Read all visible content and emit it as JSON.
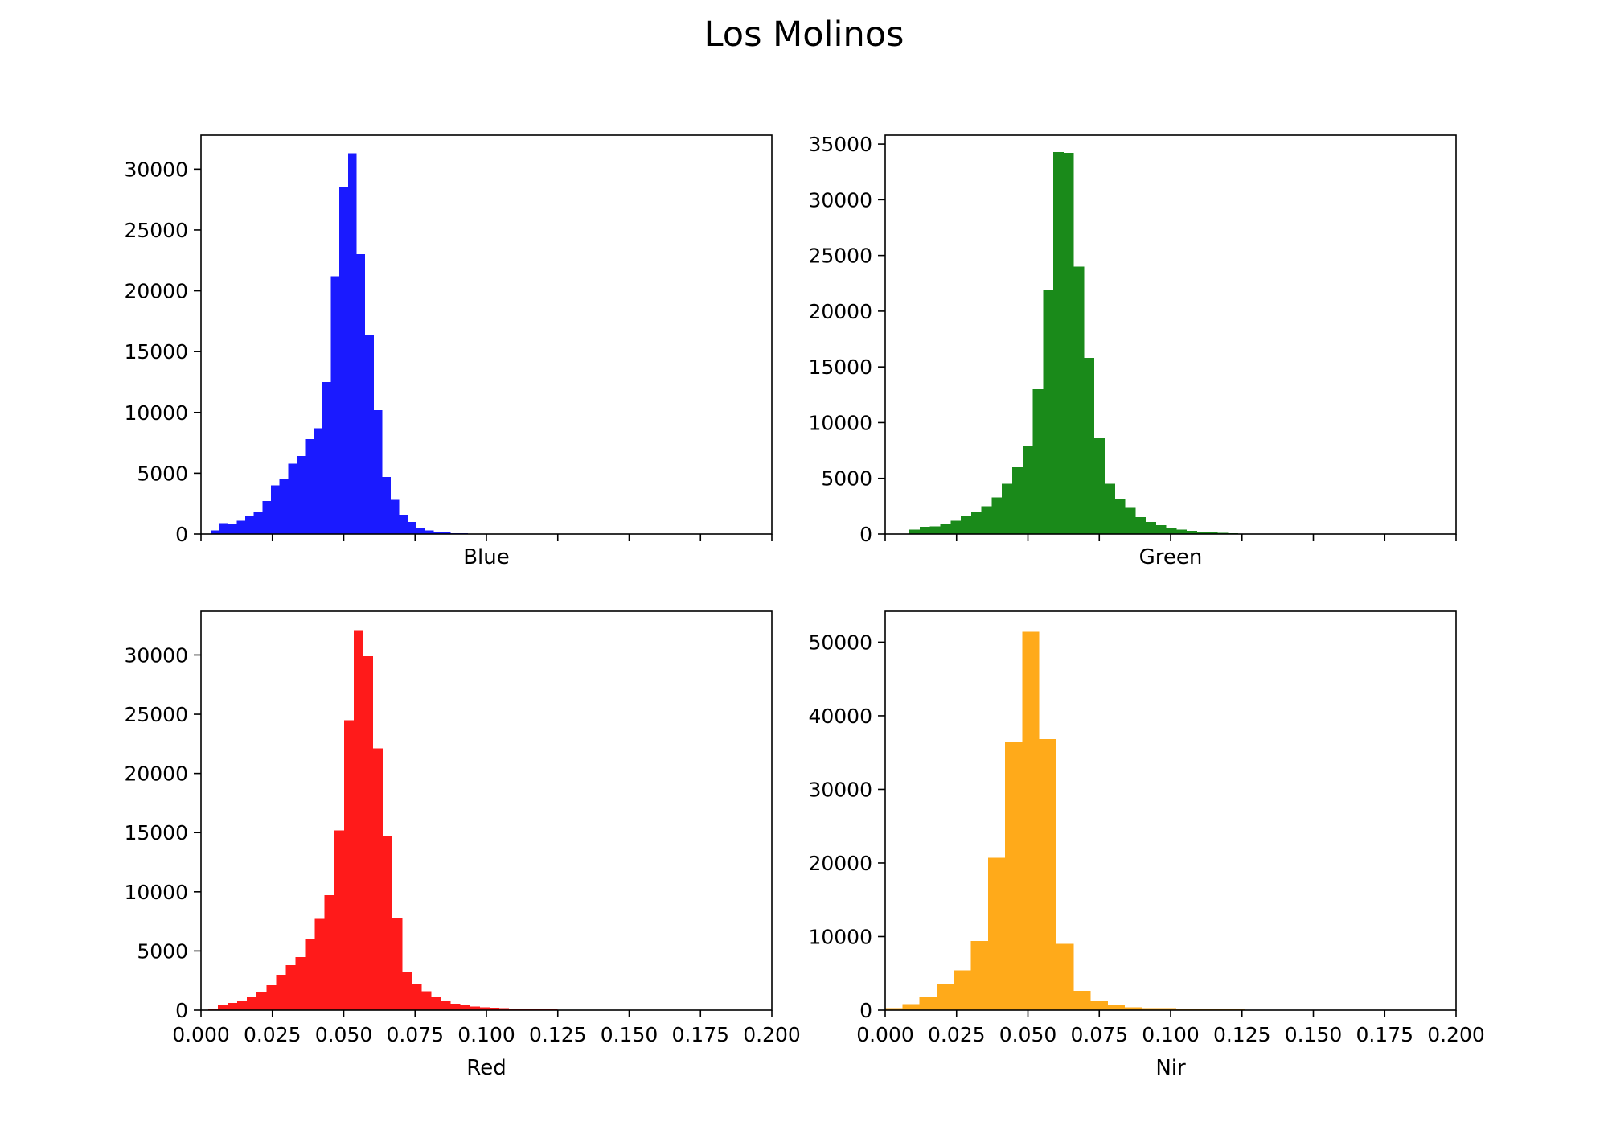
{
  "figure": {
    "title": "Los Molinos"
  },
  "chart_data": [
    {
      "type": "bar",
      "subtype": "histogram",
      "xlabel": "Blue",
      "color": "#1a1aff",
      "xlim": [
        0,
        0.2
      ],
      "ylim": [
        0,
        32800
      ],
      "xticks": [
        0,
        0.025,
        0.05,
        0.075,
        0.1,
        0.125,
        0.15,
        0.175,
        0.2
      ],
      "xtick_labels_visible": false,
      "yticks": [
        0,
        5000,
        10000,
        15000,
        20000,
        25000,
        30000
      ],
      "bin_start": 0.0035,
      "bin_width": 0.003,
      "values": [
        300,
        900,
        850,
        1100,
        1500,
        1800,
        2700,
        4000,
        4500,
        5800,
        6400,
        7800,
        8700,
        12500,
        21200,
        28500,
        31300,
        23000,
        16400,
        10200,
        4700,
        2800,
        1600,
        1000,
        500,
        300,
        200,
        120,
        80,
        50,
        30,
        20,
        10
      ]
    },
    {
      "type": "bar",
      "subtype": "histogram",
      "xlabel": "Green",
      "color": "#1a8a1a",
      "xlim": [
        0,
        0.2
      ],
      "ylim": [
        0,
        35800
      ],
      "xticks": [
        0,
        0.025,
        0.05,
        0.075,
        0.1,
        0.125,
        0.15,
        0.175,
        0.2
      ],
      "xtick_labels_visible": false,
      "yticks": [
        0,
        5000,
        10000,
        15000,
        20000,
        25000,
        30000,
        35000
      ],
      "bin_start": 0.0085,
      "bin_width": 0.0036,
      "values": [
        400,
        650,
        700,
        900,
        1200,
        1600,
        2000,
        2500,
        3300,
        4500,
        6000,
        7900,
        13000,
        21900,
        34300,
        34200,
        24000,
        15800,
        8600,
        4500,
        3100,
        2400,
        1500,
        1100,
        800,
        560,
        400,
        300,
        200,
        150,
        100,
        70,
        50,
        30
      ]
    },
    {
      "type": "bar",
      "subtype": "histogram",
      "xlabel": "Red",
      "color": "#ff1a1a",
      "xlim": [
        0,
        0.2
      ],
      "ylim": [
        0,
        33700
      ],
      "xticks": [
        0,
        0.025,
        0.05,
        0.075,
        0.1,
        0.125,
        0.15,
        0.175,
        0.2
      ],
      "xtick_labels": [
        "0.000",
        "0.025",
        "0.050",
        "0.075",
        "0.100",
        "0.125",
        "0.150",
        "0.175",
        "0.200"
      ],
      "yticks": [
        0,
        5000,
        10000,
        15000,
        20000,
        25000,
        30000
      ],
      "bin_start": 0.0025,
      "bin_width": 0.0034,
      "values": [
        150,
        400,
        600,
        800,
        1100,
        1500,
        2100,
        3000,
        3800,
        4500,
        6000,
        7700,
        9700,
        15200,
        24500,
        32100,
        29900,
        22100,
        14700,
        7800,
        3200,
        2200,
        1600,
        1100,
        750,
        550,
        400,
        320,
        250,
        200,
        160,
        130,
        110,
        90,
        70,
        60,
        50,
        40,
        30,
        20
      ]
    },
    {
      "type": "bar",
      "subtype": "histogram",
      "xlabel": "Nir",
      "color": "#ffaa1a",
      "xlim": [
        0,
        0.2
      ],
      "ylim": [
        0,
        54200
      ],
      "xticks": [
        0,
        0.025,
        0.05,
        0.075,
        0.1,
        0.125,
        0.15,
        0.175,
        0.2
      ],
      "xtick_labels": [
        "0.000",
        "0.025",
        "0.050",
        "0.075",
        "0.100",
        "0.125",
        "0.150",
        "0.175",
        "0.200"
      ],
      "yticks": [
        0,
        10000,
        20000,
        30000,
        40000,
        50000
      ],
      "bin_start": 0.0,
      "bin_width": 0.006,
      "values": [
        300,
        800,
        1800,
        3500,
        5400,
        9400,
        20700,
        36500,
        51400,
        36800,
        9000,
        2600,
        1200,
        650,
        400,
        300,
        250,
        200,
        150,
        120,
        100,
        80,
        70,
        60,
        50,
        45,
        40,
        35,
        30,
        30,
        30,
        30,
        30,
        30
      ]
    }
  ]
}
